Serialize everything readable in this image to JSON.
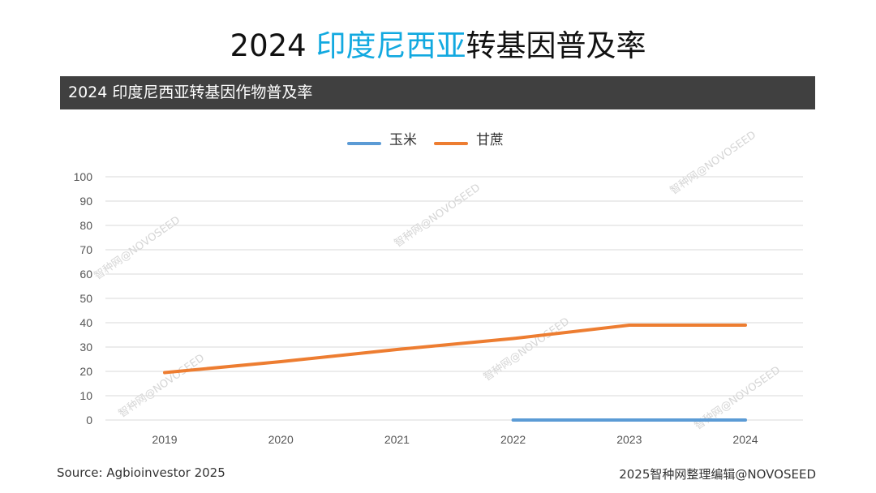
{
  "page": {
    "title_year": "2024",
    "title_country": "印度尼西亚",
    "title_rest": "转基因普及率",
    "subtitle": "2024 印度尼西亚转基因作物普及率",
    "source": "Source: Agbioinvestor 2025",
    "credit": "2025智种网整理编辑@NOVOSEED",
    "watermark": "智种网@NOVOSEED",
    "accent_color": "#12a9e0",
    "header_bar_color": "#404040"
  },
  "chart_data": {
    "type": "line",
    "categories": [
      "2019",
      "2020",
      "2021",
      "2022",
      "2023",
      "2024"
    ],
    "ylim": [
      0,
      100
    ],
    "yticks": [
      0,
      10,
      20,
      30,
      40,
      50,
      60,
      70,
      80,
      90,
      100
    ],
    "grid": true,
    "legend_position": "top-center",
    "series": [
      {
        "name": "玉米",
        "color": "#5b9bd5",
        "values": [
          null,
          null,
          null,
          0,
          0,
          0
        ]
      },
      {
        "name": "甘蔗",
        "color": "#ed7d31",
        "values": [
          19.5,
          24,
          29,
          33.5,
          39,
          39
        ]
      }
    ]
  }
}
